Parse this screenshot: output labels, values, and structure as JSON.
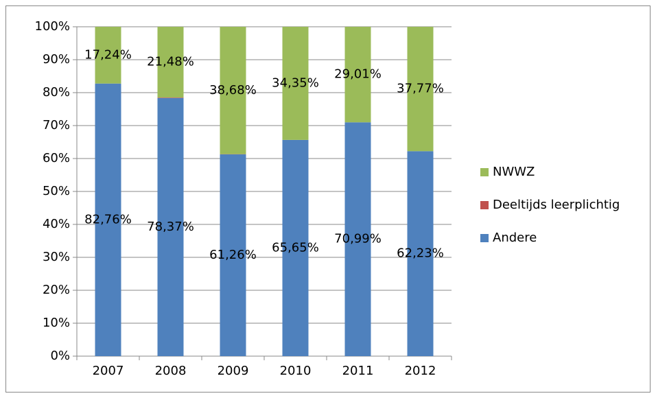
{
  "chart_data": {
    "type": "stacked_bar_100",
    "categories": [
      "2007",
      "2008",
      "2009",
      "2010",
      "2011",
      "2012"
    ],
    "series": [
      {
        "name": "Andere",
        "color": "#4f81bd",
        "values": [
          82.76,
          78.37,
          61.26,
          65.65,
          70.99,
          62.23
        ],
        "value_labels": [
          "82,76%",
          "78,37%",
          "61,26%",
          "65,65%",
          "70,99%",
          "62,23%"
        ]
      },
      {
        "name": "Deeltijds leerplichtig",
        "color": "#c0504d",
        "values": [
          0,
          0.15,
          0.06,
          0,
          0,
          0
        ]
      },
      {
        "name": "NWWZ",
        "color": "#9bbb59",
        "values": [
          17.24,
          21.48,
          38.68,
          34.35,
          29.01,
          37.77
        ],
        "value_labels": [
          "17,24%",
          "21,48%",
          "38,68%",
          "34,35%",
          "29,01%",
          "37,77%"
        ]
      }
    ],
    "ylim": [
      0,
      100
    ],
    "yticks": [
      {
        "value": 0,
        "label": "0%"
      },
      {
        "value": 10,
        "label": "10%"
      },
      {
        "value": 20,
        "label": "20%"
      },
      {
        "value": 30,
        "label": "30%"
      },
      {
        "value": 40,
        "label": "40%"
      },
      {
        "value": 50,
        "label": "50%"
      },
      {
        "value": 60,
        "label": "60%"
      },
      {
        "value": 70,
        "label": "70%"
      },
      {
        "value": 80,
        "label": "80%"
      },
      {
        "value": 90,
        "label": "90%"
      },
      {
        "value": 100,
        "label": "100%"
      }
    ],
    "grid": true,
    "legend": "right"
  }
}
